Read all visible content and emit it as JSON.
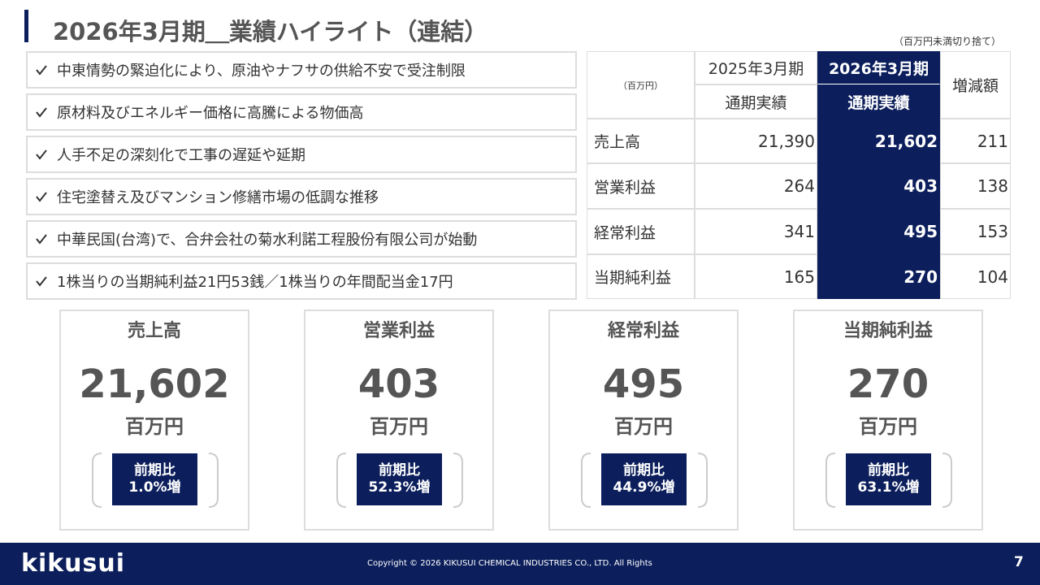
{
  "header": {
    "title": "2026年3月期＿業績ハイライト（連結）",
    "note": "（百万円未満切り捨て）"
  },
  "bullets": [
    "中東情勢の緊迫化により、原油やナフサの供給不安で受注制限",
    "原材料及びエネルギー価格に高騰による物価高",
    "人手不足の深刻化で工事の遅延や延期",
    "住宅塗替え及びマンション修繕市場の低調な推移",
    "中華民国(台湾)で、合弁会社の菊水利諾工程股份有限公司が始動",
    "1株当りの当期純利益21円53銭／1株当りの年間配当金17円"
  ],
  "table": {
    "unit": "（百万円）",
    "prev_period": "2025年3月期",
    "prev_sub": "通期実績",
    "cur_period": "2026年3月期",
    "cur_sub": "通期実績",
    "diff": "増減額",
    "rows": [
      [
        "売上高",
        "21,390",
        "21,602",
        "211"
      ],
      [
        "営業利益",
        "264",
        "403",
        "138"
      ],
      [
        "経常利益",
        "341",
        "495",
        "153"
      ],
      [
        "当期純利益",
        "165",
        "270",
        "104"
      ]
    ]
  },
  "cards": [
    {
      "title": "売上高",
      "value": "21,602",
      "unit": "百万円",
      "compare": "前期比",
      "ratio": "1.0%増"
    },
    {
      "title": "営業利益",
      "value": "403",
      "unit": "百万円",
      "compare": "前期比",
      "ratio": "52.3%増"
    },
    {
      "title": "経常利益",
      "value": "495",
      "unit": "百万円",
      "compare": "前期比",
      "ratio": "44.9%増"
    },
    {
      "title": "当期純利益",
      "value": "270",
      "unit": "百万円",
      "compare": "前期比",
      "ratio": "63.1%増"
    }
  ],
  "footer": {
    "logo": "kikusui",
    "copyright": "Copyright © 2026 KIKUSUI CHEMICAL INDUSTRIES CO., LTD. All Rights",
    "page": "7"
  }
}
